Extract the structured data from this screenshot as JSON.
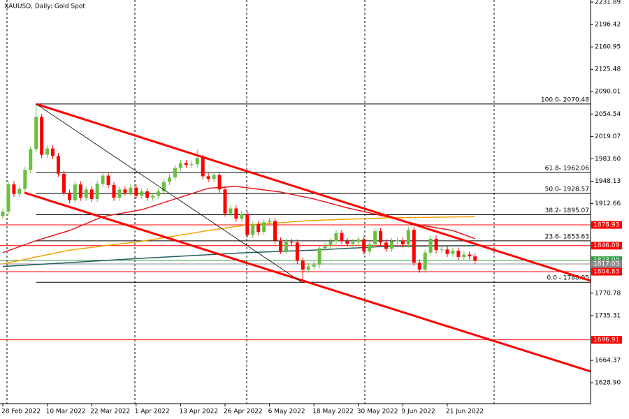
{
  "chart_data": {
    "type": "candlestick",
    "title": "XAUUSD, Daily:  Gold Spot",
    "categories": [
      "28 Feb 2022",
      null,
      null,
      null,
      null,
      null,
      null,
      null,
      "10 Mar 2022",
      null,
      null,
      null,
      null,
      null,
      null,
      null,
      "22 Mar 2022",
      null,
      null,
      null,
      null,
      null,
      null,
      null,
      "1 Apr 2022",
      null,
      null,
      null,
      null,
      null,
      null,
      null,
      "13 Apr 2022",
      null,
      null,
      null,
      null,
      null,
      null,
      null,
      "26 Apr 2022",
      null,
      null,
      null,
      null,
      null,
      null,
      null,
      "6 May 2022",
      null,
      null,
      null,
      null,
      null,
      null,
      null,
      "18 May 2022",
      null,
      null,
      null,
      null,
      null,
      null,
      null,
      "30 May 2022",
      null,
      null,
      null,
      null,
      null,
      null,
      null,
      "9 Jun 2022",
      null,
      null,
      null,
      null,
      null,
      null,
      null,
      "21 Jun 2022",
      null,
      null,
      null,
      null,
      null
    ],
    "open": [
      1893,
      1900,
      1943,
      1928,
      1936,
      1966,
      1999,
      2050,
      1990,
      2000,
      1988,
      1960,
      1930,
      1918,
      1943,
      1922,
      1935,
      1920,
      1944,
      1957,
      1942,
      1922,
      1935,
      1930,
      1938,
      1925,
      1932,
      1922,
      1925,
      1932,
      1947,
      1954,
      1969,
      1977,
      1974,
      1975,
      1985,
      1956,
      1952,
      1958,
      1935,
      1897,
      1905,
      1889,
      1896,
      1863,
      1880,
      1868,
      1883,
      1885,
      1854,
      1838,
      1852,
      1851,
      1822,
      1808,
      1813,
      1816,
      1842,
      1846,
      1853,
      1866,
      1853,
      1849,
      1852,
      1856,
      1837,
      1848,
      1869,
      1851,
      1841,
      1853,
      1854,
      1848,
      1871,
      1819,
      1808,
      1835,
      1857,
      1839,
      1840,
      1833,
      1838,
      1828,
      1832,
      1829
    ],
    "high": [
      1905,
      1948,
      1948,
      1941,
      1971,
      2004,
      2070,
      2055,
      2005,
      2005,
      1993,
      1965,
      1935,
      1948,
      1948,
      1940,
      1940,
      1949,
      1962,
      1962,
      1947,
      1940,
      1940,
      1943,
      1943,
      1937,
      1937,
      1930,
      1937,
      1952,
      1959,
      1974,
      1982,
      1982,
      1980,
      1998,
      1990,
      1961,
      1963,
      1963,
      1940,
      1910,
      1910,
      1901,
      1901,
      1885,
      1885,
      1888,
      1890,
      1890,
      1859,
      1857,
      1857,
      1856,
      1827,
      1818,
      1821,
      1847,
      1851,
      1858,
      1871,
      1871,
      1858,
      1857,
      1861,
      1861,
      1853,
      1874,
      1874,
      1856,
      1858,
      1859,
      1859,
      1876,
      1876,
      1824,
      1840,
      1862,
      1862,
      1845,
      1845,
      1843,
      1843,
      1837,
      1837,
      1834
    ],
    "low": [
      1888,
      1895,
      1923,
      1923,
      1931,
      1961,
      1994,
      1985,
      1985,
      1983,
      1955,
      1925,
      1913,
      1913,
      1917,
      1917,
      1915,
      1915,
      1939,
      1937,
      1917,
      1917,
      1925,
      1925,
      1920,
      1920,
      1917,
      1917,
      1920,
      1927,
      1942,
      1949,
      1964,
      1969,
      1969,
      1970,
      1951,
      1947,
      1947,
      1930,
      1892,
      1892,
      1884,
      1884,
      1858,
      1858,
      1863,
      1863,
      1878,
      1849,
      1833,
      1833,
      1846,
      1817,
      1787,
      1803,
      1808,
      1811,
      1837,
      1841,
      1848,
      1848,
      1844,
      1844,
      1847,
      1832,
      1832,
      1843,
      1846,
      1836,
      1836,
      1848,
      1843,
      1843,
      1814,
      1803,
      1803,
      1830,
      1834,
      1834,
      1828,
      1828,
      1823,
      1823,
      1824,
      1817
    ],
    "close": [
      1900,
      1943,
      1928,
      1936,
      1966,
      1999,
      2050,
      1990,
      2000,
      1988,
      1960,
      1930,
      1918,
      1943,
      1922,
      1935,
      1920,
      1944,
      1957,
      1942,
      1922,
      1935,
      1930,
      1938,
      1925,
      1932,
      1922,
      1925,
      1932,
      1947,
      1954,
      1969,
      1977,
      1974,
      1975,
      1985,
      1956,
      1952,
      1958,
      1935,
      1897,
      1905,
      1889,
      1896,
      1863,
      1880,
      1868,
      1883,
      1885,
      1854,
      1838,
      1852,
      1851,
      1822,
      1808,
      1813,
      1816,
      1842,
      1846,
      1853,
      1866,
      1853,
      1849,
      1852,
      1856,
      1837,
      1848,
      1869,
      1851,
      1841,
      1853,
      1854,
      1848,
      1871,
      1819,
      1808,
      1835,
      1857,
      1839,
      1840,
      1833,
      1838,
      1828,
      1832,
      1829,
      1822
    ],
    "up_color": "#6abf40",
    "down_color": "#ff0000",
    "ylim": [
      1595.8,
      2235.2
    ],
    "yticks": [
      2231.89,
      2196.42,
      2160.95,
      2125.48,
      2090.01,
      2054.54,
      2019.07,
      {
        "value": 1983.6,
        "label": "1983.60"
      },
      1948.13,
      1912.66,
      1770.78,
      1735.31,
      1664.37,
      {
        "value": 1628.9,
        "label": "1628.90"
      }
    ],
    "moving_averages": [
      {
        "color": "#e31a1c",
        "x": [
          0,
          6,
          12,
          18,
          25,
          31,
          37,
          42,
          50,
          56,
          62,
          69,
          75,
          81,
          85
        ],
        "values": [
          1835,
          1854,
          1870,
          1892,
          1903,
          1920,
          1937,
          1940,
          1931,
          1920,
          1906,
          1892,
          1879,
          1870,
          1857
        ]
      },
      {
        "color": "#f5a300",
        "x": [
          0,
          12,
          25,
          37,
          44,
          56,
          69,
          85
        ],
        "values": [
          1817,
          1839,
          1853,
          1870,
          1879,
          1886,
          1890,
          1892
        ]
      },
      {
        "color": "#1f5f5b",
        "x": [
          0,
          25,
          44,
          56,
          69,
          85
        ],
        "values": [
          1813,
          1826,
          1835,
          1839,
          1845,
          1846
        ]
      }
    ],
    "trendlines": [
      {
        "color": "#ff0000",
        "x": [
          6,
          105.8
        ],
        "values": [
          2070.48,
          1790.5
        ]
      },
      {
        "color": "#ff0000",
        "x": [
          3.9,
          105.8
        ],
        "values": [
          1929.9,
          1646.7
        ]
      },
      {
        "color": "#000000",
        "x": [
          6,
          54
        ],
        "values": [
          2070.48,
          1787
        ]
      }
    ],
    "fib_levels": [
      {
        "value": 2070.48,
        "label": "100.0- 2070.48"
      },
      {
        "value": 1962.06,
        "label": "61.8- 1962.06"
      },
      {
        "value": 1928.57,
        "label": "50.0- 1928.57"
      },
      {
        "value": 1895.07,
        "label": "38.2- 1895.07"
      },
      {
        "value": 1853.63,
        "label": "23.6- 1853.63"
      },
      {
        "value": 1788.05,
        "label": "0.0 - 1788.05"
      }
    ],
    "fib_start": 6,
    "price_lines": [
      {
        "value": 1878.93,
        "label": "1878.93",
        "color": "#ff0000"
      },
      {
        "value": 1846.09,
        "label": "1846.09",
        "color": "#ff0000"
      },
      {
        "value": 1823.0,
        "label": "1823.00",
        "color": "#2e9e3e"
      },
      {
        "value": 1817.03,
        "label": "1817.03",
        "color": "#8c8c8c"
      },
      {
        "value": 1804.83,
        "label": "1804.83",
        "color": "#ff0000"
      },
      {
        "value": 1696.91,
        "label": "1696.91",
        "color": "#ff0000"
      }
    ]
  }
}
